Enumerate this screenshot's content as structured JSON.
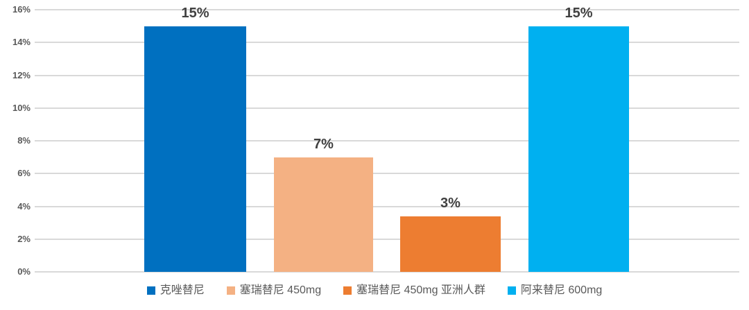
{
  "chart_data": {
    "type": "bar",
    "categories": [
      "克唑替尼",
      "塞瑞替尼 450mg",
      "塞瑞替尼 450mg 亚洲人群",
      "阿来替尼 600mg"
    ],
    "values": [
      15,
      7,
      3,
      15
    ],
    "value_labels": [
      "15%",
      "7%",
      "3%",
      "15%"
    ],
    "series_keys": [
      "crizotinib",
      "ceritinib-450mg",
      "ceritinib-450mg-asian",
      "alectinib-600mg"
    ],
    "colors": [
      "#0070C0",
      "#F4B183",
      "#ED7D31",
      "#00B0F0"
    ],
    "title": "",
    "xlabel": "",
    "ylabel": "",
    "ylim": [
      0,
      16
    ],
    "ytick_step": 2,
    "ytick_labels": [
      "0%",
      "2%",
      "4%",
      "6%",
      "8%",
      "10%",
      "12%",
      "14%",
      "16%"
    ],
    "grid": true,
    "legend_position": "bottom"
  },
  "style_colors": {
    "gridline": "#D9D9D9",
    "axis_text": "#595959",
    "data_label_text": "#404040",
    "legend_text": "#595959",
    "background": "#FFFFFF"
  }
}
